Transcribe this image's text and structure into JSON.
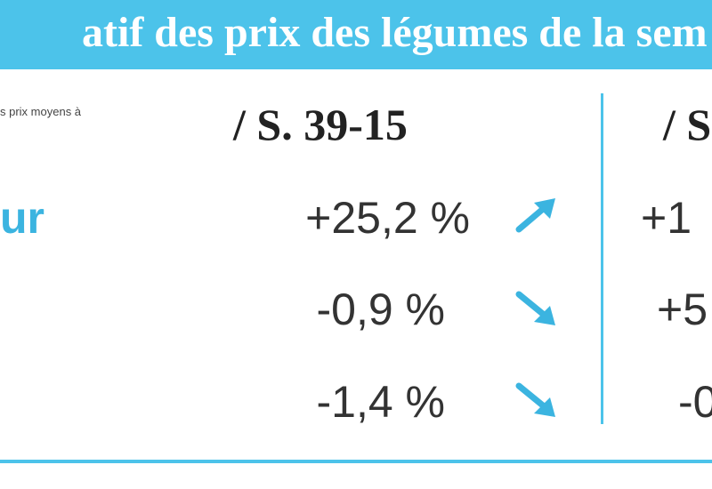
{
  "header": {
    "title": "atif des prix des légumes de la sem"
  },
  "note": "s prix moyens à",
  "table": {
    "columns": [
      "/ S. 39-15",
      "/ S"
    ],
    "rows": [
      {
        "label": "ur",
        "cells": [
          "+25,2 %",
          "+1"
        ]
      },
      {
        "label": "",
        "cells": [
          "-0,9 %",
          "+5"
        ]
      },
      {
        "label": "",
        "cells": [
          "-1,4 %",
          "-0"
        ]
      }
    ]
  }
}
